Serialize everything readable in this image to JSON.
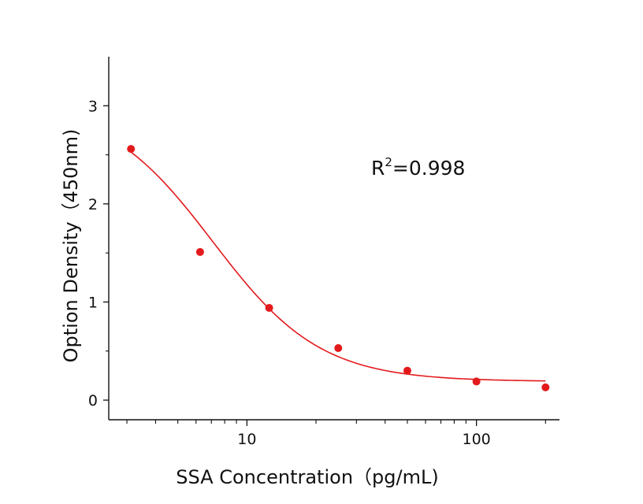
{
  "chart_data": {
    "type": "scatter",
    "title": "",
    "xlabel": "SSA Concentration（pg/mL)",
    "ylabel": "Option Density（450nm)",
    "x_scale": "log",
    "xlim": [
      2.5,
      230
    ],
    "ylim": [
      -0.2,
      3.5
    ],
    "x_major_ticks": [
      {
        "value": 10,
        "label": "10"
      },
      {
        "value": 100,
        "label": "100"
      }
    ],
    "y_major_ticks": [
      {
        "value": 0,
        "label": "0"
      },
      {
        "value": 1,
        "label": "1"
      },
      {
        "value": 2,
        "label": "2"
      },
      {
        "value": 3,
        "label": "3"
      }
    ],
    "grid": false,
    "legend": "none",
    "annotation": {
      "base": "R",
      "superscript": "2",
      "rest": "=0.998"
    },
    "series": [
      {
        "kind": "points",
        "color": "#e31a1c",
        "x": [
          3.125,
          6.25,
          12.5,
          25,
          50,
          100,
          200
        ],
        "y": [
          2.56,
          1.51,
          0.94,
          0.53,
          0.3,
          0.19,
          0.13
        ]
      },
      {
        "kind": "fit",
        "color": "#e31a1c",
        "model": "4PL",
        "params": {
          "A": 3.04,
          "D": 0.19,
          "C": 7.1,
          "B": 1.85
        },
        "x_range": [
          3.125,
          200
        ]
      }
    ]
  }
}
